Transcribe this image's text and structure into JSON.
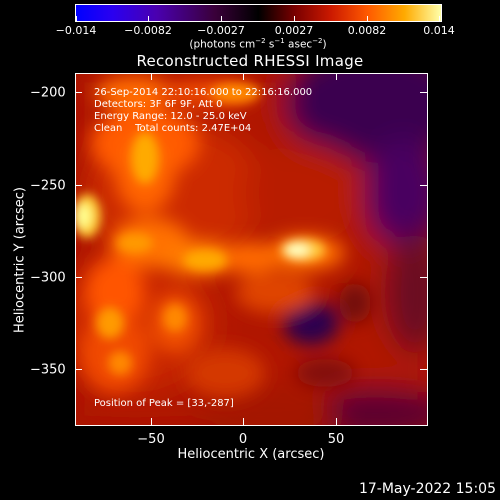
{
  "colorbar": {
    "tick_labels": [
      "−0.014",
      "−0.0082",
      "−0.0027",
      "0.0027",
      "0.0082",
      "0.014"
    ],
    "units_main": "(photons cm",
    "units_exp1": "−2",
    "units_mid": " s",
    "units_exp2": "−1",
    "units_tail": " asec",
    "units_exp3": "−2",
    "units_close": ")"
  },
  "title": "Reconstructed RHESSI Image",
  "info": {
    "time_range": "26-Sep-2014 22:10:16.000 to 22:16:16.000",
    "detectors": "Detectors: 3F 6F 9F, Att 0",
    "energy": "Energy Range: 12.0 - 25.0 keV",
    "clean": "Clean    Total counts: 2.47E+04",
    "peak": "Position of Peak = [33,-287]"
  },
  "axes": {
    "x_title": "Heliocentric X (arcsec)",
    "y_title": "Heliocentric Y (arcsec)",
    "x_tick_labels": [
      "−50",
      "0",
      "50"
    ],
    "y_tick_labels": [
      "−200",
      "−250",
      "−300",
      "−350"
    ],
    "x_range": [
      -90,
      100
    ],
    "y_range": [
      -380,
      -190
    ]
  },
  "colors": {
    "negative": "#2a00a0",
    "background_emission": "#b41400",
    "peak": "#ffffd0"
  },
  "footer": {
    "timestamp": "17-May-2022 15:05"
  }
}
